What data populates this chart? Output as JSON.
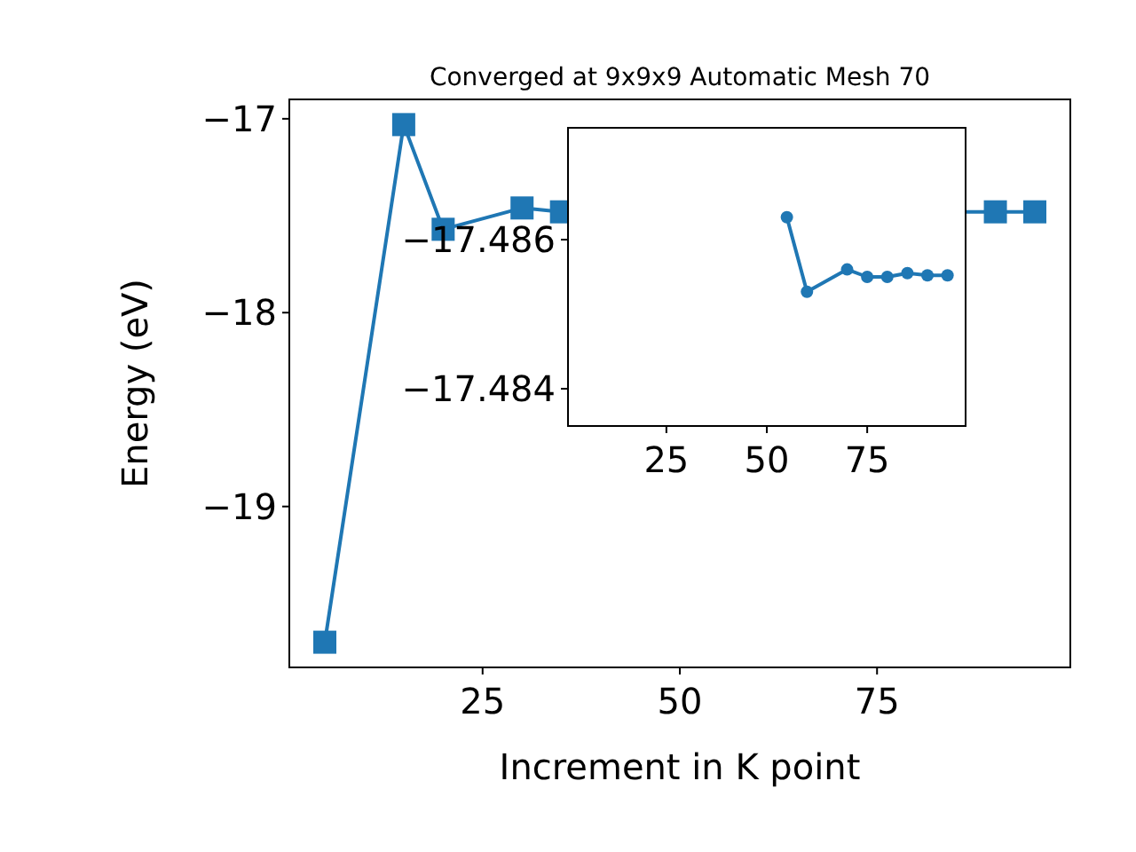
{
  "chart_data": [
    {
      "type": "line",
      "title": "Converged at 9x9x9 Automatic Mesh 70",
      "xlabel": "Increment in K point",
      "ylabel": "Energy (eV)",
      "x": [
        5,
        15,
        20,
        30,
        35,
        85,
        90,
        95
      ],
      "series": [
        {
          "color": "#1f77b4",
          "values": [
            -19.7,
            -17.03,
            -17.57,
            -17.46,
            -17.48,
            null,
            -17.48,
            -17.48
          ]
        }
      ],
      "xlim": [
        0.5,
        99.5
      ],
      "xticks": [
        25,
        50,
        75
      ],
      "ylim": [
        -19.83,
        -16.9
      ],
      "yticks": [
        {
          "value": -19,
          "label": "−19"
        },
        {
          "value": -18,
          "label": "−18"
        },
        {
          "value": -17,
          "label": "−17"
        }
      ],
      "marker": "square",
      "grid": false
    },
    {
      "type": "line",
      "x": [
        55,
        60,
        70,
        75,
        80,
        85,
        90,
        95
      ],
      "series": [
        {
          "color": "#1f77b4",
          "values": [
            -17.4863,
            -17.4853,
            -17.4856,
            -17.4855,
            -17.4855,
            -17.48555,
            -17.48552,
            -17.48552
          ]
        }
      ],
      "xlim": [
        0.5,
        99.5
      ],
      "xticks": [
        25,
        50,
        75
      ],
      "ylim": [
        -17.4835,
        -17.4875
      ],
      "yticks": [
        {
          "value": -17.486,
          "label": "−17.486"
        },
        {
          "value": -17.484,
          "label": "−17.484"
        }
      ],
      "marker": "circle",
      "grid": false
    }
  ]
}
